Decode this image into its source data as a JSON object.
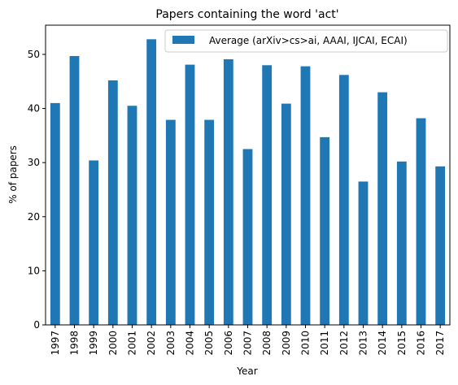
{
  "chart_data": {
    "type": "bar",
    "title": "Papers containing the word 'act'",
    "xlabel": "Year",
    "ylabel": "% of papers",
    "ylim": [
      0,
      55.4
    ],
    "yticks": [
      0,
      10,
      20,
      30,
      40,
      50
    ],
    "grid": false,
    "legend_position": "top-right",
    "bar_color": "#1f77b4",
    "categories": [
      "1997",
      "1998",
      "1999",
      "2000",
      "2001",
      "2002",
      "2003",
      "2004",
      "2005",
      "2006",
      "2007",
      "2008",
      "2009",
      "2010",
      "2011",
      "2012",
      "2013",
      "2014",
      "2015",
      "2016",
      "2017"
    ],
    "series": [
      {
        "name": "Average (arXiv>cs>ai, AAAI, IJCAI, ECAI)",
        "values": [
          41.0,
          49.7,
          30.4,
          45.2,
          40.5,
          52.8,
          37.9,
          48.1,
          37.9,
          49.1,
          32.5,
          48.0,
          40.9,
          47.8,
          34.7,
          46.2,
          26.5,
          43.0,
          30.2,
          38.2,
          29.3
        ]
      }
    ]
  }
}
